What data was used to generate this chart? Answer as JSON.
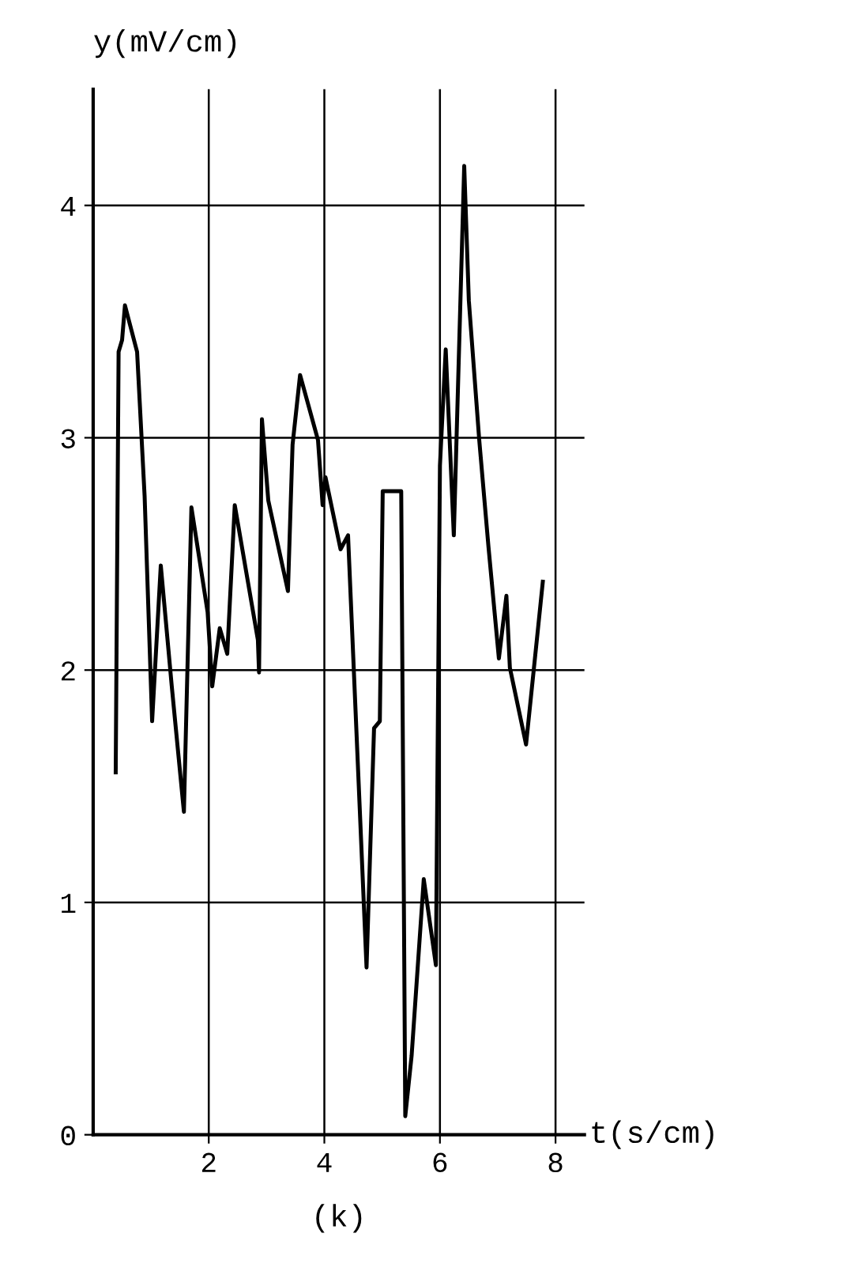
{
  "chart_data": {
    "type": "line",
    "ylabel": "y(mV/cm)",
    "xlabel": "t(s/cm)",
    "annotations": [
      "(k)"
    ],
    "x": [
      0.39,
      0.44,
      0.5,
      0.55,
      0.76,
      0.89,
      1.02,
      1.17,
      1.36,
      1.57,
      1.7,
      1.98,
      2.06,
      2.19,
      2.32,
      2.45,
      2.85,
      2.87,
      2.92,
      3.03,
      3.37,
      3.45,
      3.58,
      3.89,
      3.97,
      4.02,
      4.28,
      4.41,
      4.73,
      4.86,
      4.96,
      5.01,
      5.33,
      5.4,
      5.51,
      5.72,
      5.93,
      6.0,
      6.1,
      6.24,
      6.42,
      6.5,
      6.68,
      6.84,
      7.02,
      7.15,
      7.21,
      7.49,
      7.78
    ],
    "series": [
      {
        "color": "#000000",
        "values": [
          1.56,
          3.37,
          3.42,
          3.57,
          3.37,
          2.75,
          1.78,
          2.45,
          1.93,
          1.39,
          2.7,
          2.25,
          1.93,
          2.18,
          2.07,
          2.71,
          2.13,
          1.99,
          3.08,
          2.73,
          2.34,
          2.97,
          3.27,
          2.99,
          2.71,
          2.83,
          2.52,
          2.58,
          0.72,
          1.75,
          1.78,
          2.77,
          2.77,
          0.08,
          0.34,
          1.1,
          0.73,
          2.88,
          3.38,
          2.58,
          4.17,
          3.59,
          2.99,
          2.53,
          2.05,
          2.32,
          2.01,
          1.68,
          2.38
        ]
      }
    ],
    "xlim": [
      0,
      8.5
    ],
    "ylim": [
      0,
      4.5
    ],
    "xticks": [
      2,
      4,
      6,
      8
    ],
    "yticks": [
      0,
      1,
      2,
      3,
      4
    ],
    "grid": true,
    "marker": "none",
    "line_style": "solid"
  }
}
